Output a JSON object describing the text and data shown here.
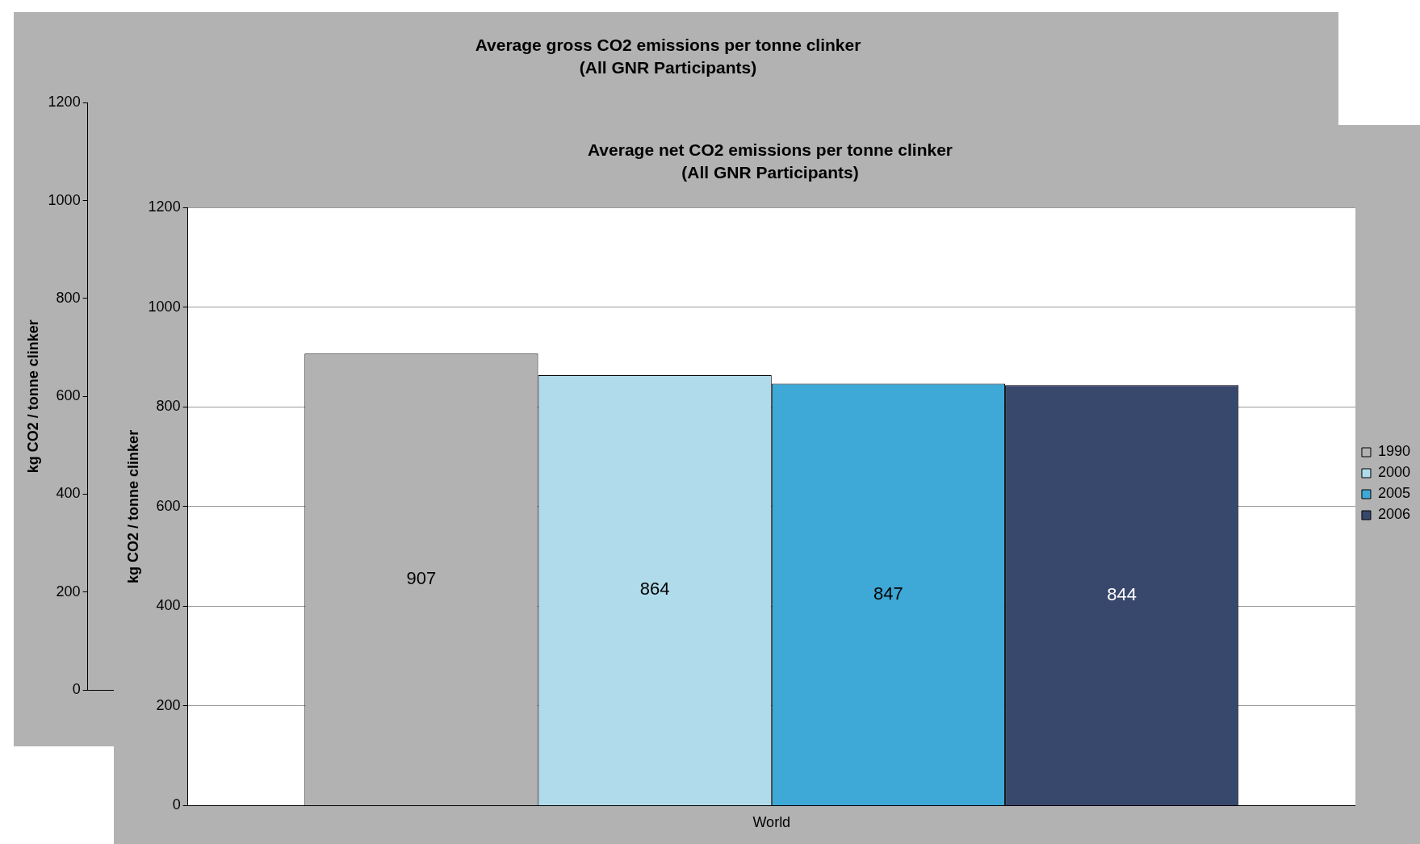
{
  "chart_data": [
    {
      "type": "bar",
      "title": "Average gross CO2 emissions per tonne clinker",
      "subtitle": "(All GNR Participants)",
      "ylabel": "kg CO2 / tonne clinker",
      "categories": [
        null
      ],
      "values": [
        null
      ],
      "ylim": [
        0,
        1200
      ],
      "yticks": [
        0,
        200,
        400,
        600,
        800,
        1000,
        1200
      ],
      "tick_labels": "y",
      "grid": false,
      "legend": false
    },
    {
      "type": "bar",
      "title": "Average net CO2 emissions per tonne clinker",
      "subtitle": "(All GNR Participants)",
      "ylabel": "kg CO2 / tonne clinker",
      "categories": [
        "World"
      ],
      "series": [
        {
          "name": "1990",
          "color": "#b2b2b2",
          "values": [
            907
          ]
        },
        {
          "name": "2000",
          "color": "#b0dbeb",
          "values": [
            864
          ]
        },
        {
          "name": "2005",
          "color": "#3ea8d6",
          "values": [
            847
          ]
        },
        {
          "name": "2006",
          "color": "#38476c",
          "values": [
            844
          ]
        }
      ],
      "ylim": [
        0,
        1200
      ],
      "yticks": [
        0,
        200,
        400,
        600,
        800,
        1000,
        1200
      ],
      "grid": "y",
      "legend": "right",
      "data_labels": true
    }
  ]
}
